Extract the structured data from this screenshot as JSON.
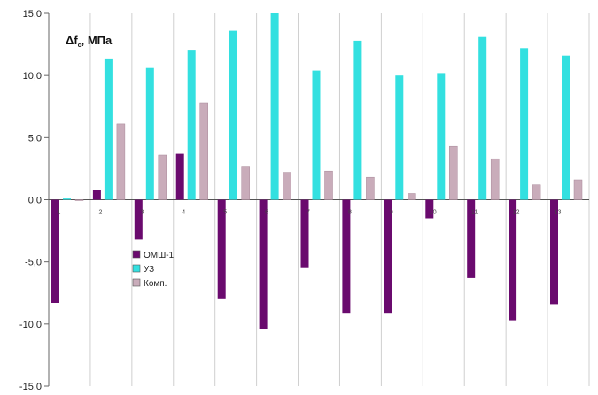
{
  "chart_data": {
    "type": "bar",
    "ylabel": {
      "main": "Δf",
      "sub": "c",
      "unit": ", МПа"
    },
    "ylim": [
      -15,
      15
    ],
    "yticks": [
      "-15,0",
      "-10,0",
      "-5,0",
      "0,0",
      "5,0",
      "10,0",
      "15,0"
    ],
    "ytick_values": [
      -15,
      -10,
      -5,
      0,
      5,
      10,
      15
    ],
    "grid": "vertical",
    "legend_position": "center-left",
    "categories": [
      "1",
      "2",
      "3",
      "4",
      "5",
      "6",
      "7",
      "8",
      "9",
      "10",
      "11",
      "12",
      "13"
    ],
    "series": [
      {
        "name": "ОМШ-1",
        "color": "#6a0a6e",
        "values": [
          -8.3,
          0.8,
          -3.2,
          3.7,
          -8.0,
          -10.4,
          -5.5,
          -9.1,
          -9.1,
          -1.5,
          -6.3,
          -9.7,
          -8.4
        ]
      },
      {
        "name": "УЗ",
        "color": "#33e0e0",
        "values": [
          0.1,
          11.3,
          10.6,
          12.0,
          13.6,
          15.0,
          10.4,
          12.8,
          10.0,
          10.2,
          13.1,
          12.2,
          11.6
        ]
      },
      {
        "name": "Комп.",
        "color": "#c9acba",
        "values": [
          0,
          6.1,
          3.6,
          7.8,
          2.7,
          2.2,
          2.3,
          1.8,
          0.5,
          4.3,
          3.3,
          1.2,
          1.6
        ]
      }
    ]
  }
}
